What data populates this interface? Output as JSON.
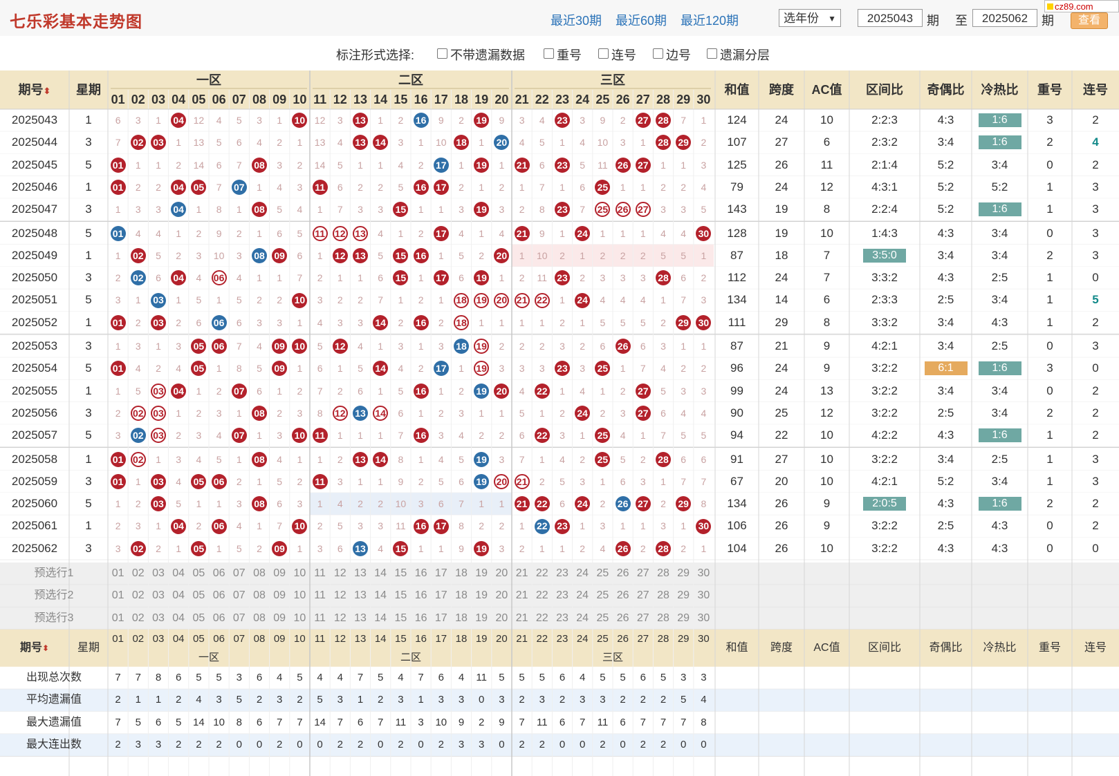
{
  "header": {
    "title": "七乐彩基本走势图",
    "links": [
      "最近30期",
      "最近60期",
      "最近120期"
    ],
    "year_select": "选年份",
    "issue_from": "2025043",
    "issue_to": "2025062",
    "label_qi": "期",
    "label_zhi": "至",
    "query_button": "查看",
    "watermark": "cz89.com"
  },
  "options": {
    "label": "标注形式选择:",
    "items": [
      "不带遗漏数据",
      "重号",
      "连号",
      "边号",
      "遗漏分层"
    ]
  },
  "table": {
    "head": {
      "issue": "期号",
      "week": "星期",
      "zones": [
        "一区",
        "二区",
        "三区"
      ],
      "stats": [
        "和值",
        "跨度",
        "AC值",
        "区间比",
        "奇偶比",
        "冷热比",
        "重号",
        "连号"
      ]
    },
    "numbers": [
      "01",
      "02",
      "03",
      "04",
      "05",
      "06",
      "07",
      "08",
      "09",
      "10",
      "11",
      "12",
      "13",
      "14",
      "15",
      "16",
      "17",
      "18",
      "19",
      "20",
      "21",
      "22",
      "23",
      "24",
      "25",
      "26",
      "27",
      "28",
      "29",
      "30"
    ],
    "rows": [
      {
        "issue": "2025043",
        "week": "1",
        "cells": [
          "6",
          "3",
          "1",
          "R04",
          "12",
          "4",
          "5",
          "3",
          "1",
          "R10",
          "12",
          "3",
          "R13",
          "1",
          "2",
          "B16",
          "9",
          "2",
          "R19",
          "9",
          "3",
          "4",
          "R23",
          "3",
          "9",
          "2",
          "R27",
          "R28",
          "7",
          "1"
        ],
        "stats": [
          "124",
          "24",
          "10",
          "2:2:3",
          "4:3",
          "1:6",
          "3",
          "2"
        ],
        "tags": {
          "coldhot": "teal"
        }
      },
      {
        "issue": "2025044",
        "week": "3",
        "cells": [
          "7",
          "R02",
          "R03",
          "1",
          "13",
          "5",
          "6",
          "4",
          "2",
          "1",
          "13",
          "4",
          "R13",
          "R14",
          "3",
          "1",
          "10",
          "R18",
          "1",
          "B20",
          "4",
          "5",
          "1",
          "4",
          "10",
          "3",
          "1",
          "R28",
          "R29",
          "2"
        ],
        "stats": [
          "107",
          "27",
          "6",
          "2:3:2",
          "3:4",
          "1:6",
          "2",
          "4"
        ],
        "tags": {
          "coldhot": "teal",
          "lianhao": "teal"
        }
      },
      {
        "issue": "2025045",
        "week": "5",
        "cells": [
          "R01",
          "1",
          "1",
          "2",
          "14",
          "6",
          "7",
          "R08",
          "3",
          "2",
          "14",
          "5",
          "1",
          "1",
          "4",
          "2",
          "B17",
          "1",
          "R19",
          "1",
          "R21",
          "6",
          "R23",
          "5",
          "11",
          "R26",
          "R27",
          "1",
          "1",
          "3"
        ],
        "stats": [
          "125",
          "26",
          "11",
          "2:1:4",
          "5:2",
          "3:4",
          "0",
          "2"
        ],
        "tags": {}
      },
      {
        "issue": "2025046",
        "week": "1",
        "cells": [
          "R01",
          "2",
          "2",
          "R04",
          "R05",
          "7",
          "B07",
          "1",
          "4",
          "3",
          "R11",
          "6",
          "2",
          "2",
          "5",
          "R16",
          "R17",
          "2",
          "1",
          "2",
          "1",
          "7",
          "1",
          "6",
          "R25",
          "1",
          "1",
          "2",
          "2",
          "4"
        ],
        "stats": [
          "79",
          "24",
          "12",
          "4:3:1",
          "5:2",
          "5:2",
          "1",
          "3"
        ],
        "tags": {}
      },
      {
        "issue": "2025047",
        "week": "3",
        "cells": [
          "1",
          "3",
          "3",
          "B04",
          "1",
          "8",
          "1",
          "R08",
          "5",
          "4",
          "1",
          "7",
          "3",
          "3",
          "R15",
          "1",
          "1",
          "3",
          "R19",
          "3",
          "2",
          "8",
          "R23",
          "7",
          "O25",
          "O26",
          "O27",
          "3",
          "3",
          "5"
        ],
        "stats": [
          "143",
          "19",
          "8",
          "2:2:4",
          "5:2",
          "1:6",
          "1",
          "3"
        ],
        "tags": {
          "coldhot": "teal"
        }
      },
      {
        "issue": "2025048",
        "week": "5",
        "cells": [
          "B01",
          "4",
          "4",
          "1",
          "2",
          "9",
          "2",
          "1",
          "6",
          "5",
          "O11",
          "O12",
          "O13",
          "4",
          "1",
          "2",
          "R17",
          "4",
          "1",
          "4",
          "R21",
          "9",
          "1",
          "R24",
          "1",
          "1",
          "1",
          "4",
          "4",
          "R30"
        ],
        "stats": [
          "128",
          "19",
          "10",
          "1:4:3",
          "4:3",
          "3:4",
          "0",
          "3"
        ],
        "tags": {}
      },
      {
        "issue": "2025049",
        "week": "1",
        "cells": [
          "1",
          "R02",
          "5",
          "2",
          "3",
          "10",
          "3",
          "B08",
          "R09",
          "6",
          "1",
          "R12",
          "R13",
          "5",
          "R15",
          "R16",
          "1",
          "5",
          "2",
          "R20",
          "1",
          "10",
          "2",
          "1",
          "2",
          "2",
          "2",
          "5",
          "5",
          "1"
        ],
        "stats": [
          "87",
          "18",
          "7",
          "3:5:0",
          "3:4",
          "3:4",
          "2",
          "3"
        ],
        "tags": {
          "zone": "teal"
        },
        "shade": 3
      },
      {
        "issue": "2025050",
        "week": "3",
        "cells": [
          "2",
          "B02",
          "6",
          "R04",
          "4",
          "O06",
          "4",
          "1",
          "1",
          "7",
          "2",
          "1",
          "1",
          "6",
          "R15",
          "1",
          "R17",
          "6",
          "R19",
          "1",
          "2",
          "11",
          "R23",
          "2",
          "3",
          "3",
          "3",
          "R28",
          "6",
          "2"
        ],
        "stats": [
          "112",
          "24",
          "7",
          "3:3:2",
          "4:3",
          "2:5",
          "1",
          "0"
        ],
        "tags": {}
      },
      {
        "issue": "2025051",
        "week": "5",
        "cells": [
          "3",
          "1",
          "B03",
          "1",
          "5",
          "1",
          "5",
          "2",
          "2",
          "R10",
          "3",
          "2",
          "2",
          "7",
          "1",
          "2",
          "1",
          "O18",
          "O19",
          "O20",
          "O21",
          "O22",
          "1",
          "R24",
          "4",
          "4",
          "4",
          "1",
          "7",
          "3"
        ],
        "stats": [
          "134",
          "14",
          "6",
          "2:3:3",
          "2:5",
          "3:4",
          "1",
          "5"
        ],
        "tags": {
          "lianhao": "teal"
        }
      },
      {
        "issue": "2025052",
        "week": "1",
        "cells": [
          "R01",
          "2",
          "R03",
          "2",
          "6",
          "B06",
          "6",
          "3",
          "3",
          "1",
          "4",
          "3",
          "3",
          "R14",
          "2",
          "R16",
          "2",
          "O18",
          "1",
          "1",
          "1",
          "1",
          "2",
          "1",
          "5",
          "5",
          "5",
          "2",
          "R29",
          "R30"
        ],
        "stats": [
          "111",
          "29",
          "8",
          "3:3:2",
          "3:4",
          "4:3",
          "1",
          "2"
        ],
        "tags": {}
      },
      {
        "issue": "2025053",
        "week": "3",
        "cells": [
          "1",
          "3",
          "1",
          "3",
          "R05",
          "R06",
          "7",
          "4",
          "R09",
          "R10",
          "5",
          "R12",
          "4",
          "1",
          "3",
          "1",
          "3",
          "B18",
          "O19",
          "2",
          "2",
          "2",
          "3",
          "2",
          "6",
          "R26",
          "6",
          "3",
          "1",
          "1"
        ],
        "stats": [
          "87",
          "21",
          "9",
          "4:2:1",
          "3:4",
          "2:5",
          "0",
          "3"
        ],
        "tags": {}
      },
      {
        "issue": "2025054",
        "week": "5",
        "cells": [
          "R01",
          "4",
          "2",
          "4",
          "R05",
          "1",
          "8",
          "5",
          "R09",
          "1",
          "6",
          "1",
          "5",
          "R14",
          "4",
          "2",
          "B17",
          "1",
          "O19",
          "3",
          "3",
          "3",
          "R23",
          "3",
          "R25",
          "1",
          "7",
          "4",
          "2",
          "2"
        ],
        "stats": [
          "96",
          "24",
          "9",
          "3:2:2",
          "6:1",
          "1:6",
          "3",
          "0"
        ],
        "tags": {
          "oddeven": "orange",
          "coldhot": "teal"
        }
      },
      {
        "issue": "2025055",
        "week": "1",
        "cells": [
          "1",
          "5",
          "O03",
          "R04",
          "1",
          "2",
          "R07",
          "6",
          "1",
          "2",
          "7",
          "2",
          "6",
          "1",
          "5",
          "R16",
          "1",
          "2",
          "B19",
          "R20",
          "4",
          "R22",
          "1",
          "4",
          "1",
          "2",
          "R27",
          "5",
          "3",
          "3"
        ],
        "stats": [
          "99",
          "24",
          "13",
          "3:2:2",
          "3:4",
          "3:4",
          "0",
          "2"
        ],
        "tags": {}
      },
      {
        "issue": "2025056",
        "week": "3",
        "cells": [
          "2",
          "O02",
          "O03",
          "1",
          "2",
          "3",
          "1",
          "R08",
          "2",
          "3",
          "8",
          "O12",
          "B13",
          "O14",
          "6",
          "1",
          "2",
          "3",
          "1",
          "1",
          "5",
          "1",
          "2",
          "R24",
          "2",
          "3",
          "R27",
          "6",
          "4",
          "4"
        ],
        "stats": [
          "90",
          "25",
          "12",
          "3:2:2",
          "2:5",
          "3:4",
          "2",
          "2"
        ],
        "tags": {}
      },
      {
        "issue": "2025057",
        "week": "5",
        "cells": [
          "3",
          "B02",
          "O03",
          "2",
          "3",
          "4",
          "R07",
          "1",
          "3",
          "R10",
          "R11",
          "1",
          "1",
          "1",
          "7",
          "R16",
          "3",
          "4",
          "2",
          "2",
          "6",
          "R22",
          "3",
          "1",
          "R25",
          "4",
          "1",
          "7",
          "5",
          "5"
        ],
        "stats": [
          "94",
          "22",
          "10",
          "4:2:2",
          "4:3",
          "1:6",
          "1",
          "2"
        ],
        "tags": {
          "coldhot": "teal"
        }
      },
      {
        "issue": "2025058",
        "week": "1",
        "cells": [
          "R01",
          "O02",
          "1",
          "3",
          "4",
          "5",
          "1",
          "R08",
          "4",
          "1",
          "1",
          "2",
          "R13",
          "R14",
          "8",
          "1",
          "4",
          "5",
          "B19",
          "3",
          "7",
          "1",
          "4",
          "2",
          "R25",
          "5",
          "2",
          "R28",
          "6",
          "6"
        ],
        "stats": [
          "91",
          "27",
          "10",
          "3:2:2",
          "3:4",
          "2:5",
          "1",
          "3"
        ],
        "tags": {}
      },
      {
        "issue": "2025059",
        "week": "3",
        "cells": [
          "R01",
          "1",
          "R03",
          "4",
          "R05",
          "R06",
          "2",
          "1",
          "5",
          "2",
          "R11",
          "3",
          "1",
          "1",
          "9",
          "2",
          "5",
          "6",
          "B19",
          "O20",
          "O21",
          "2",
          "5",
          "3",
          "1",
          "6",
          "3",
          "1",
          "7",
          "7"
        ],
        "stats": [
          "67",
          "20",
          "10",
          "4:2:1",
          "5:2",
          "3:4",
          "1",
          "3"
        ],
        "tags": {}
      },
      {
        "issue": "2025060",
        "week": "5",
        "cells": [
          "1",
          "2",
          "R03",
          "5",
          "1",
          "1",
          "3",
          "R08",
          "6",
          "3",
          "1",
          "4",
          "2",
          "2",
          "10",
          "3",
          "6",
          "7",
          "1",
          "1",
          "R21",
          "R22",
          "6",
          "R24",
          "2",
          "B26",
          "R27",
          "2",
          "R29",
          "8"
        ],
        "stats": [
          "134",
          "26",
          "9",
          "2:0:5",
          "4:3",
          "1:6",
          "2",
          "2"
        ],
        "tags": {
          "zone": "teal",
          "coldhot": "teal"
        },
        "shade": 2
      },
      {
        "issue": "2025061",
        "week": "1",
        "cells": [
          "2",
          "3",
          "1",
          "R04",
          "2",
          "R06",
          "4",
          "1",
          "7",
          "R10",
          "2",
          "5",
          "3",
          "3",
          "11",
          "R16",
          "R17",
          "8",
          "2",
          "2",
          "1",
          "B22",
          "R23",
          "1",
          "3",
          "1",
          "1",
          "3",
          "1",
          "R30"
        ],
        "stats": [
          "106",
          "26",
          "9",
          "3:2:2",
          "2:5",
          "4:3",
          "0",
          "2"
        ],
        "tags": {}
      },
      {
        "issue": "2025062",
        "week": "3",
        "cells": [
          "3",
          "R02",
          "2",
          "1",
          "R05",
          "1",
          "5",
          "2",
          "R09",
          "1",
          "3",
          "6",
          "B13",
          "4",
          "R15",
          "1",
          "1",
          "9",
          "R19",
          "3",
          "2",
          "1",
          "1",
          "2",
          "4",
          "R26",
          "2",
          "R28",
          "2",
          "1"
        ],
        "stats": [
          "104",
          "26",
          "10",
          "3:2:2",
          "4:3",
          "4:3",
          "0",
          "0"
        ],
        "tags": {}
      }
    ],
    "preselect_rows": [
      "预选行1",
      "预选行2",
      "预选行3"
    ],
    "summary_rows": [
      {
        "label": "出现总次数",
        "values": [
          "7",
          "7",
          "8",
          "6",
          "5",
          "5",
          "3",
          "6",
          "4",
          "5",
          "4",
          "4",
          "7",
          "5",
          "4",
          "7",
          "6",
          "4",
          "11",
          "5",
          "5",
          "5",
          "6",
          "4",
          "5",
          "5",
          "6",
          "5",
          "3",
          "3"
        ]
      },
      {
        "label": "平均遗漏值",
        "values": [
          "2",
          "1",
          "1",
          "2",
          "4",
          "3",
          "5",
          "2",
          "3",
          "2",
          "5",
          "3",
          "1",
          "2",
          "3",
          "1",
          "3",
          "3",
          "0",
          "3",
          "2",
          "3",
          "2",
          "3",
          "3",
          "2",
          "2",
          "2",
          "5",
          "4"
        ]
      },
      {
        "label": "最大遗漏值",
        "values": [
          "7",
          "5",
          "6",
          "5",
          "14",
          "10",
          "8",
          "6",
          "7",
          "7",
          "14",
          "7",
          "6",
          "7",
          "11",
          "3",
          "10",
          "9",
          "2",
          "9",
          "7",
          "11",
          "6",
          "7",
          "11",
          "6",
          "7",
          "7",
          "7",
          "8"
        ]
      },
      {
        "label": "最大连出数",
        "values": [
          "2",
          "3",
          "3",
          "2",
          "2",
          "2",
          "0",
          "0",
          "2",
          "0",
          "0",
          "2",
          "2",
          "0",
          "2",
          "0",
          "2",
          "3",
          "3",
          "0",
          "2",
          "2",
          "0",
          "0",
          "2",
          "0",
          "2",
          "2",
          "0",
          "0"
        ]
      }
    ]
  },
  "colors": {
    "title_red": "#c0392b",
    "link_blue": "#2b73b8",
    "ball_red": "#b3212b",
    "ball_blue": "#2f6fa7",
    "header_bg": "#f2e6c6",
    "teal_tag": "#6fa8a3",
    "orange_tag": "#e5aa5e",
    "teal_text": "#138a8a"
  }
}
